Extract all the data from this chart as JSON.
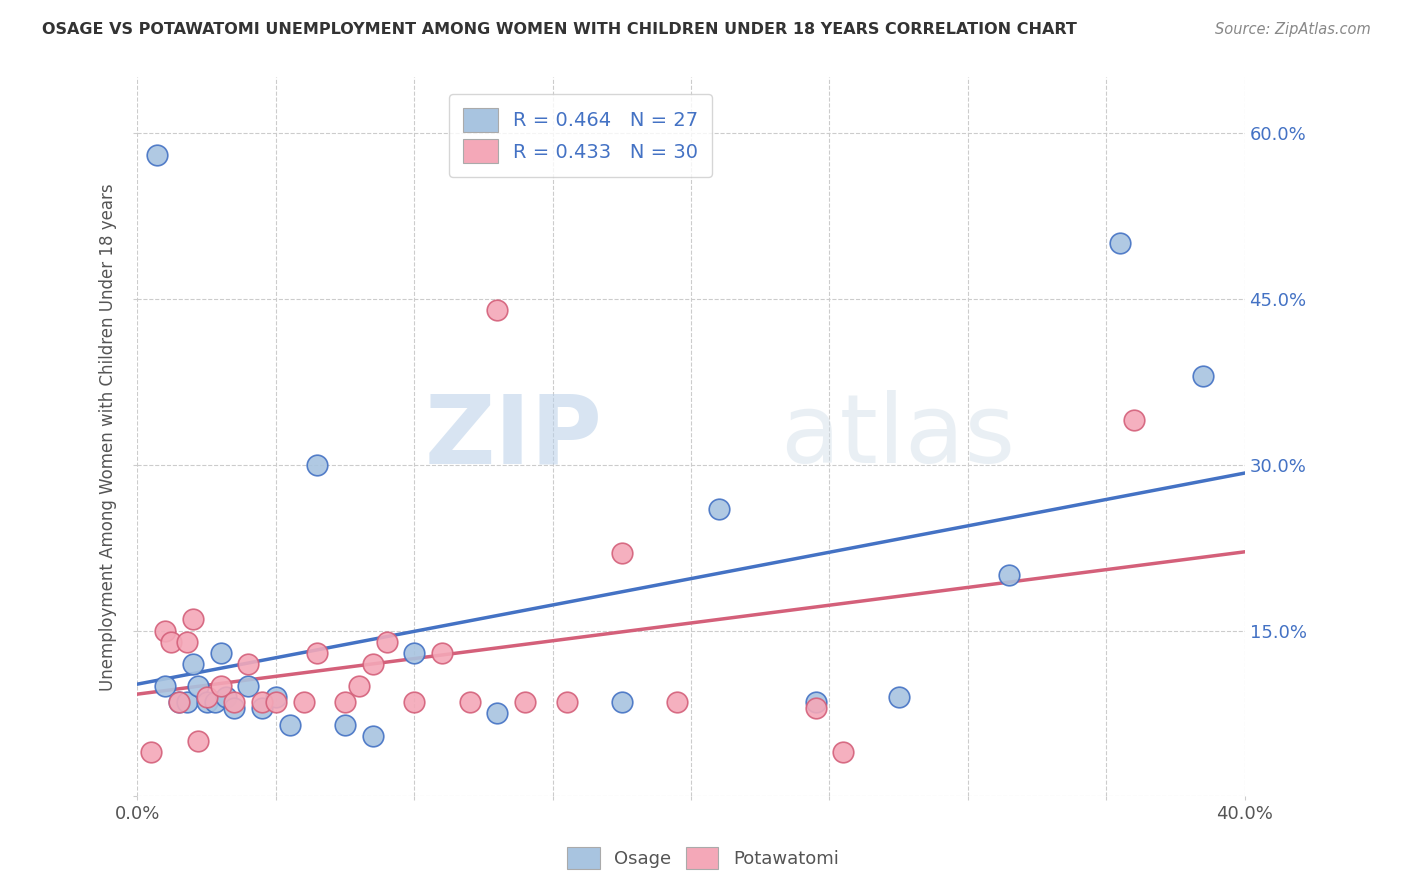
{
  "title": "OSAGE VS POTAWATOMI UNEMPLOYMENT AMONG WOMEN WITH CHILDREN UNDER 18 YEARS CORRELATION CHART",
  "source": "Source: ZipAtlas.com",
  "ylabel": "Unemployment Among Women with Children Under 18 years",
  "watermark_zip": "ZIP",
  "watermark_atlas": "atlas",
  "xlim": [
    0.0,
    0.4
  ],
  "ylim": [
    0.0,
    0.65
  ],
  "xticks_labeled": [
    0.0,
    0.4
  ],
  "xticks_minor": [
    0.05,
    0.1,
    0.15,
    0.2,
    0.25,
    0.3,
    0.35
  ],
  "yticks_right": [
    0.0,
    0.15,
    0.3,
    0.45,
    0.6
  ],
  "osage_R": 0.464,
  "osage_N": 27,
  "potawatomi_R": 0.433,
  "potawatomi_N": 30,
  "osage_color": "#a8c4e0",
  "potawatomi_color": "#f4a8b8",
  "osage_line_color": "#4472c4",
  "potawatomi_line_color": "#d4607a",
  "background_color": "#ffffff",
  "grid_color": "#cccccc",
  "title_color": "#333333",
  "legend_text_color": "#4472c4",
  "axis_color": "#555555",
  "osage_x": [
    0.007,
    0.01,
    0.015,
    0.018,
    0.02,
    0.022,
    0.025,
    0.028,
    0.03,
    0.032,
    0.035,
    0.04,
    0.045,
    0.05,
    0.055,
    0.065,
    0.075,
    0.085,
    0.1,
    0.13,
    0.175,
    0.21,
    0.245,
    0.275,
    0.315,
    0.355,
    0.385
  ],
  "osage_y": [
    0.58,
    0.1,
    0.085,
    0.085,
    0.12,
    0.1,
    0.085,
    0.085,
    0.13,
    0.09,
    0.08,
    0.1,
    0.08,
    0.09,
    0.065,
    0.3,
    0.065,
    0.055,
    0.13,
    0.075,
    0.085,
    0.26,
    0.085,
    0.09,
    0.2,
    0.5,
    0.38
  ],
  "potawatomi_x": [
    0.005,
    0.01,
    0.012,
    0.015,
    0.018,
    0.02,
    0.022,
    0.025,
    0.03,
    0.035,
    0.04,
    0.045,
    0.05,
    0.06,
    0.065,
    0.075,
    0.08,
    0.085,
    0.09,
    0.1,
    0.11,
    0.12,
    0.13,
    0.14,
    0.155,
    0.175,
    0.195,
    0.245,
    0.255,
    0.36
  ],
  "potawatomi_y": [
    0.04,
    0.15,
    0.14,
    0.085,
    0.14,
    0.16,
    0.05,
    0.09,
    0.1,
    0.085,
    0.12,
    0.085,
    0.085,
    0.085,
    0.13,
    0.085,
    0.1,
    0.12,
    0.14,
    0.085,
    0.13,
    0.085,
    0.44,
    0.085,
    0.085,
    0.22,
    0.085,
    0.08,
    0.04,
    0.34
  ]
}
